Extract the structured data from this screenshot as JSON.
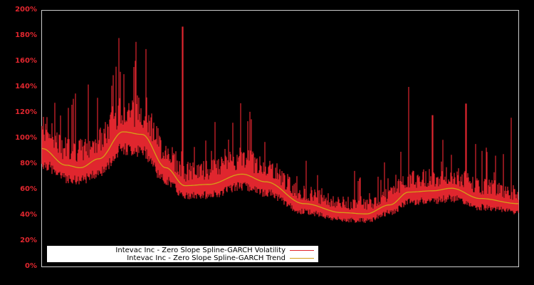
{
  "chart_data": {
    "type": "line",
    "title": "",
    "xlabel": "",
    "ylabel": "",
    "ylim": [
      0,
      200
    ],
    "y_tick_labels": [
      "0%",
      "20%",
      "40%",
      "60%",
      "80%",
      "100%",
      "120%",
      "140%",
      "160%",
      "180%",
      "200%"
    ],
    "x_tick_labels": [],
    "grid": false,
    "legend_position": "lower left",
    "background": "#000000",
    "series": [
      {
        "name": "Intevac Inc - Zero Slope Spline-GARCH Volatility",
        "color": "#e0262e",
        "description": "Noisy daily volatility with spikes; approx start 80%, high-volatility cluster 70-110% with spikes to ~170%, single spike ~187%, lows ~35-45% mid-late series, late spikes to ~140% and ~127%",
        "key_points": [
          {
            "x": 0.0,
            "y": 80
          },
          {
            "x": 0.05,
            "y": 70
          },
          {
            "x": 0.1,
            "y": 75
          },
          {
            "x": 0.15,
            "y": 100
          },
          {
            "x": 0.17,
            "y": 105
          },
          {
            "x": 0.2,
            "y": 95
          },
          {
            "x": 0.26,
            "y": 70
          },
          {
            "x": 0.295,
            "y": 187
          },
          {
            "x": 0.33,
            "y": 60
          },
          {
            "x": 0.42,
            "y": 70
          },
          {
            "x": 0.49,
            "y": 55
          },
          {
            "x": 0.6,
            "y": 42
          },
          {
            "x": 0.68,
            "y": 40
          },
          {
            "x": 0.72,
            "y": 50
          },
          {
            "x": 0.77,
            "y": 140
          },
          {
            "x": 0.82,
            "y": 118
          },
          {
            "x": 0.86,
            "y": 60
          },
          {
            "x": 0.89,
            "y": 127
          },
          {
            "x": 0.95,
            "y": 50
          },
          {
            "x": 0.985,
            "y": 116
          },
          {
            "x": 1.0,
            "y": 45
          }
        ]
      },
      {
        "name": "Intevac Inc - Zero Slope Spline-GARCH Trend",
        "color": "#d4a017",
        "key_points": [
          {
            "x": 0.0,
            "y": 92
          },
          {
            "x": 0.05,
            "y": 79
          },
          {
            "x": 0.08,
            "y": 77
          },
          {
            "x": 0.12,
            "y": 84
          },
          {
            "x": 0.17,
            "y": 105
          },
          {
            "x": 0.21,
            "y": 103
          },
          {
            "x": 0.26,
            "y": 77
          },
          {
            "x": 0.3,
            "y": 63
          },
          {
            "x": 0.35,
            "y": 64
          },
          {
            "x": 0.42,
            "y": 72
          },
          {
            "x": 0.47,
            "y": 66
          },
          {
            "x": 0.55,
            "y": 49
          },
          {
            "x": 0.63,
            "y": 42
          },
          {
            "x": 0.68,
            "y": 41
          },
          {
            "x": 0.73,
            "y": 48
          },
          {
            "x": 0.77,
            "y": 58
          },
          {
            "x": 0.82,
            "y": 59
          },
          {
            "x": 0.86,
            "y": 61
          },
          {
            "x": 0.92,
            "y": 53
          },
          {
            "x": 1.0,
            "y": 49
          }
        ]
      }
    ]
  },
  "legend": {
    "items": [
      {
        "label": "Intevac Inc - Zero Slope Spline-GARCH Volatility",
        "color": "#e0262e"
      },
      {
        "label": "Intevac Inc - Zero Slope Spline-GARCH Trend",
        "color": "#d4a017"
      }
    ]
  },
  "axis": {
    "tick_color": "#e0262e",
    "frame_color": "#cccccc"
  }
}
